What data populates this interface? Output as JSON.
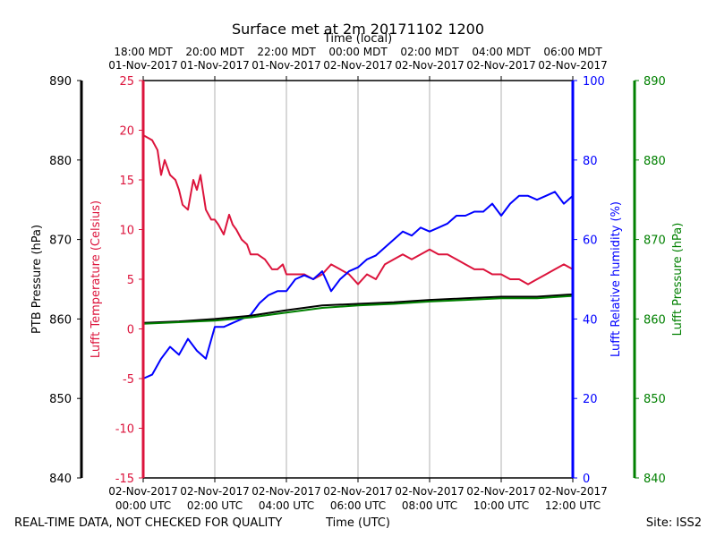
{
  "chart_data": {
    "type": "line",
    "title": "Surface met at 2m 20171102 1200",
    "top_axis_label": "Time (local)",
    "top_ticks": [
      {
        "l1": "18:00 MDT",
        "l2": "01-Nov-2017"
      },
      {
        "l1": "20:00 MDT",
        "l2": "01-Nov-2017"
      },
      {
        "l1": "22:00 MDT",
        "l2": "01-Nov-2017"
      },
      {
        "l1": "00:00 MDT",
        "l2": "02-Nov-2017"
      },
      {
        "l1": "02:00 MDT",
        "l2": "02-Nov-2017"
      },
      {
        "l1": "04:00 MDT",
        "l2": "02-Nov-2017"
      },
      {
        "l1": "06:00 MDT",
        "l2": "02-Nov-2017"
      }
    ],
    "bottom_axis_label": "Time (UTC)",
    "bottom_ticks": [
      {
        "l1": "02-Nov-2017",
        "l2": "00:00 UTC"
      },
      {
        "l1": "02-Nov-2017",
        "l2": "02:00 UTC"
      },
      {
        "l1": "02-Nov-2017",
        "l2": "04:00 UTC"
      },
      {
        "l1": "02-Nov-2017",
        "l2": "06:00 UTC"
      },
      {
        "l1": "02-Nov-2017",
        "l2": "08:00 UTC"
      },
      {
        "l1": "02-Nov-2017",
        "l2": "10:00 UTC"
      },
      {
        "l1": "02-Nov-2017",
        "l2": "12:00 UTC"
      }
    ],
    "xlim_hours": [
      0,
      12
    ],
    "axes": {
      "ptb": {
        "label": "PTB Pressure (hPa)",
        "ylim": [
          840,
          890
        ],
        "ticks": [
          840,
          850,
          860,
          870,
          880,
          890
        ],
        "color": "#000000"
      },
      "temp": {
        "label": "Lufft Temperature (Celsius)",
        "ylim": [
          -15,
          25
        ],
        "ticks": [
          -15,
          -10,
          -5,
          0,
          5,
          10,
          15,
          20,
          25
        ],
        "color": "#dc143c"
      },
      "rh": {
        "label": "Lufft Relative humidity (%)",
        "ylim": [
          0,
          100
        ],
        "ticks": [
          0,
          20,
          40,
          60,
          80,
          100
        ],
        "color": "#0000ff"
      },
      "lufft_p": {
        "label": "Lufft Pressure (hPa)",
        "ylim": [
          840,
          890
        ],
        "ticks": [
          840,
          850,
          860,
          870,
          880,
          890
        ],
        "color": "#008000"
      }
    },
    "series": [
      {
        "name": "Lufft Temperature",
        "axis": "temp",
        "color": "#dc143c",
        "x": [
          0,
          0.25,
          0.4,
          0.5,
          0.6,
          0.75,
          0.9,
          1.0,
          1.1,
          1.25,
          1.4,
          1.5,
          1.6,
          1.75,
          1.9,
          2.0,
          2.1,
          2.25,
          2.4,
          2.5,
          2.6,
          2.75,
          2.9,
          3.0,
          3.2,
          3.4,
          3.6,
          3.75,
          3.9,
          4.0,
          4.25,
          4.5,
          4.75,
          5.0,
          5.25,
          5.5,
          5.75,
          6.0,
          6.25,
          6.5,
          6.75,
          7.0,
          7.25,
          7.5,
          7.75,
          8.0,
          8.25,
          8.5,
          8.75,
          9.0,
          9.25,
          9.5,
          9.75,
          10.0,
          10.25,
          10.5,
          10.75,
          11.0,
          11.25,
          11.5,
          11.75,
          12.0
        ],
        "y": [
          19.5,
          19.0,
          18.0,
          15.5,
          17.0,
          15.5,
          15.0,
          14.0,
          12.5,
          12.0,
          15.0,
          14.0,
          15.5,
          12.0,
          11.0,
          11.0,
          10.5,
          9.5,
          11.5,
          10.5,
          10.0,
          9.0,
          8.5,
          7.5,
          7.5,
          7.0,
          6.0,
          6.0,
          6.5,
          5.5,
          5.5,
          5.5,
          5.0,
          5.5,
          6.5,
          6.0,
          5.5,
          4.5,
          5.5,
          5.0,
          6.5,
          7.0,
          7.5,
          7.0,
          7.5,
          8.0,
          7.5,
          7.5,
          7.0,
          6.5,
          6.0,
          6.0,
          5.5,
          5.5,
          5.0,
          5.0,
          4.5,
          5.0,
          5.5,
          6.0,
          6.5,
          6.0
        ]
      },
      {
        "name": "Lufft Relative humidity",
        "axis": "rh",
        "color": "#0000ff",
        "x": [
          0,
          0.25,
          0.5,
          0.75,
          1.0,
          1.25,
          1.5,
          1.75,
          2.0,
          2.25,
          2.5,
          2.75,
          3.0,
          3.25,
          3.5,
          3.75,
          4.0,
          4.25,
          4.5,
          4.75,
          5.0,
          5.25,
          5.5,
          5.75,
          6.0,
          6.25,
          6.5,
          6.75,
          7.0,
          7.25,
          7.5,
          7.75,
          8.0,
          8.25,
          8.5,
          8.75,
          9.0,
          9.25,
          9.5,
          9.75,
          10.0,
          10.25,
          10.5,
          10.75,
          11.0,
          11.25,
          11.5,
          11.75,
          12.0
        ],
        "y": [
          25,
          26,
          30,
          33,
          31,
          35,
          32,
          30,
          38,
          38,
          39,
          40,
          41,
          44,
          46,
          47,
          47,
          50,
          51,
          50,
          52,
          47,
          50,
          52,
          53,
          55,
          56,
          58,
          60,
          62,
          61,
          63,
          62,
          63,
          64,
          66,
          66,
          67,
          67,
          69,
          66,
          69,
          71,
          71,
          70,
          71,
          72,
          69,
          71
        ]
      },
      {
        "name": "PTB Pressure",
        "axis": "ptb",
        "color": "#000000",
        "x": [
          0,
          1,
          2,
          3,
          4,
          5,
          6,
          7,
          8,
          9,
          10,
          11,
          12
        ],
        "y": [
          859.5,
          859.7,
          860.0,
          860.4,
          861.1,
          861.7,
          861.9,
          862.1,
          862.4,
          862.6,
          862.8,
          862.8,
          863.1
        ]
      },
      {
        "name": "Lufft Pressure",
        "axis": "lufft_p",
        "color": "#008000",
        "x": [
          0,
          1,
          2,
          3,
          4,
          5,
          6,
          7,
          8,
          9,
          10,
          11,
          12
        ],
        "y": [
          859.4,
          859.6,
          859.8,
          860.2,
          860.8,
          861.4,
          861.7,
          861.9,
          862.2,
          862.4,
          862.6,
          862.6,
          862.9
        ]
      }
    ]
  },
  "footer": {
    "left_note": "REAL-TIME DATA, NOT CHECKED FOR QUALITY",
    "axis_label": "Time (UTC)",
    "site": "Site: ISS2"
  }
}
